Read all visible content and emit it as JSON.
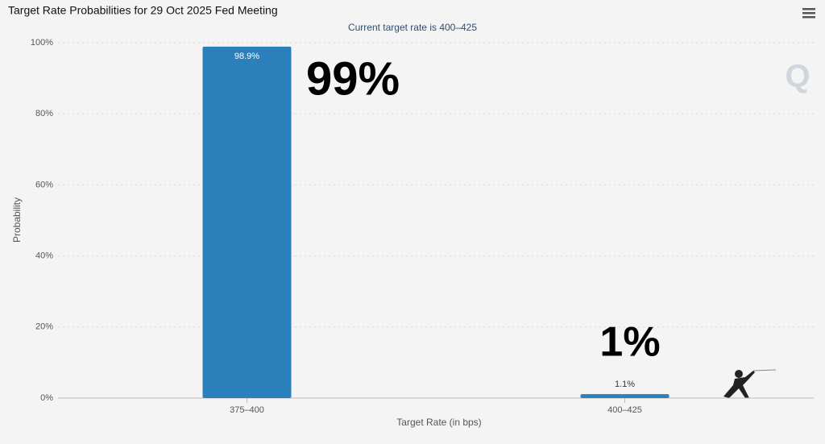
{
  "chart_data": {
    "type": "bar",
    "title": "Target Rate Probabilities for 29 Oct 2025 Fed Meeting",
    "subtitle": "Current target rate is 400–425",
    "x_label": "Target Rate (in bps)",
    "y_label": "Probability",
    "categories": [
      "375–400",
      "400–425"
    ],
    "values": [
      98.9,
      1.1
    ],
    "value_labels": [
      "98.9%",
      "1.1%"
    ],
    "color": "#2b7fbb",
    "ylim": [
      0,
      100
    ],
    "yticks": [
      {
        "value": 0,
        "label": "0%"
      },
      {
        "value": 20,
        "label": "20%"
      },
      {
        "value": 40,
        "label": "40%"
      },
      {
        "value": 60,
        "label": "60%"
      },
      {
        "value": 80,
        "label": "80%"
      },
      {
        "value": 100,
        "label": "100%"
      }
    ],
    "grid": true,
    "annotations": [
      "99%",
      "1%"
    ]
  }
}
